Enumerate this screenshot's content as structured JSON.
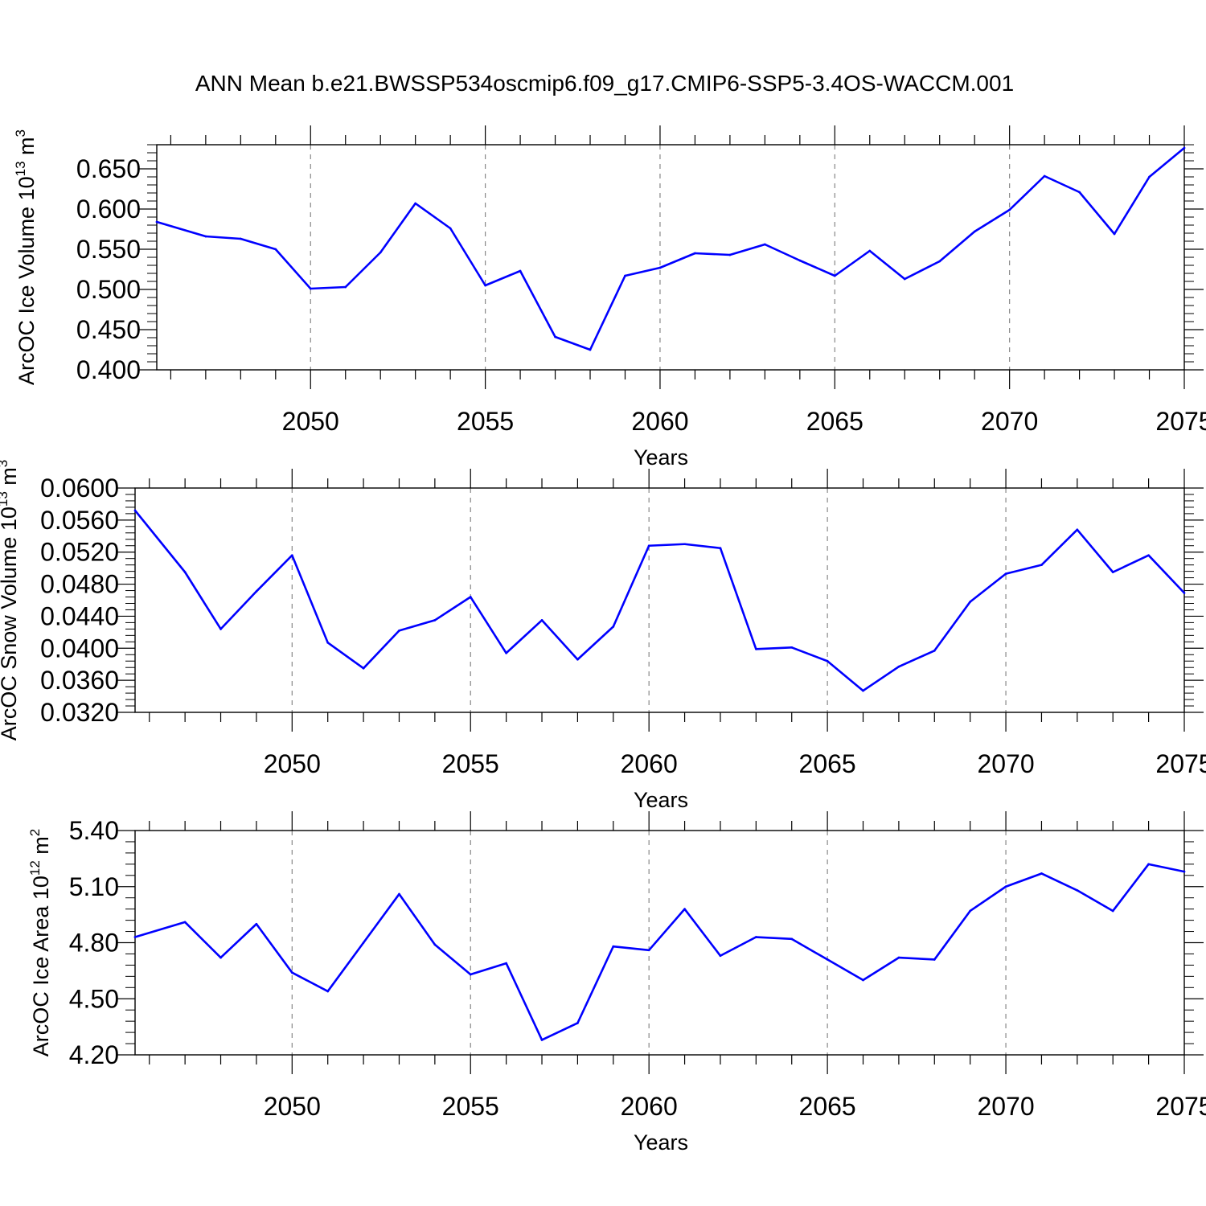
{
  "title": "ANN Mean b.e21.BWSSP534oscmip6.f09_g17.CMIP6-SSP5-3.4OS-WACCM.001",
  "line_color": "#0000ff",
  "grid_color": "#888888",
  "chart_data": [
    {
      "type": "line",
      "ylabel_main": "ArcOC Ice Volume 10",
      "ylabel_exp": "13",
      "ylabel_unit": " m",
      "ylabel_unit_exp": "3",
      "xlabel": "Years",
      "xlim": [
        2045.6,
        2075
      ],
      "ylim": [
        0.4,
        0.68
      ],
      "yticks": [
        "0.400",
        "0.450",
        "0.500",
        "0.550",
        "0.600",
        "0.650"
      ],
      "xticks": [
        "2050",
        "2055",
        "2060",
        "2065",
        "2070",
        "2075"
      ],
      "x": [
        2045.6,
        2047,
        2048,
        2049,
        2050,
        2051,
        2052,
        2053,
        2054,
        2055,
        2056,
        2057,
        2058,
        2059,
        2060,
        2061,
        2062,
        2063,
        2064,
        2065,
        2066,
        2067,
        2068,
        2069,
        2070,
        2071,
        2072,
        2073,
        2074,
        2075
      ],
      "values": [
        0.584,
        0.566,
        0.563,
        0.55,
        0.501,
        0.503,
        0.546,
        0.607,
        0.576,
        0.505,
        0.523,
        0.441,
        0.425,
        0.517,
        0.527,
        0.545,
        0.543,
        0.556,
        0.536,
        0.517,
        0.548,
        0.513,
        0.535,
        0.572,
        0.599,
        0.641,
        0.621,
        0.569,
        0.64,
        0.676
      ]
    },
    {
      "type": "line",
      "ylabel_main": "ArcOC Snow Volume 10",
      "ylabel_exp": "13",
      "ylabel_unit": " m",
      "ylabel_unit_exp": "3",
      "xlabel": "Years",
      "xlim": [
        2045.6,
        2075
      ],
      "ylim": [
        0.032,
        0.06
      ],
      "yticks": [
        "0.0320",
        "0.0360",
        "0.0400",
        "0.0440",
        "0.0480",
        "0.0520",
        "0.0560",
        "0.0600"
      ],
      "xticks": [
        "2050",
        "2055",
        "2060",
        "2065",
        "2070",
        "2075"
      ],
      "x": [
        2045.6,
        2047,
        2048,
        2049,
        2050,
        2051,
        2052,
        2053,
        2054,
        2055,
        2056,
        2057,
        2058,
        2059,
        2060,
        2061,
        2062,
        2063,
        2064,
        2065,
        2066,
        2067,
        2068,
        2069,
        2070,
        2071,
        2072,
        2073,
        2074,
        2075
      ],
      "values": [
        0.0572,
        0.0495,
        0.0424,
        0.0471,
        0.0516,
        0.0407,
        0.0375,
        0.0422,
        0.0435,
        0.0464,
        0.0394,
        0.0435,
        0.0386,
        0.0427,
        0.0528,
        0.053,
        0.0525,
        0.0399,
        0.0401,
        0.0384,
        0.0347,
        0.0377,
        0.0397,
        0.0458,
        0.0493,
        0.0504,
        0.0548,
        0.0495,
        0.0516,
        0.0469
      ]
    },
    {
      "type": "line",
      "ylabel_main": "ArcOC Ice Area 10",
      "ylabel_exp": "12",
      "ylabel_unit": " m",
      "ylabel_unit_exp": "2",
      "xlabel": "Years",
      "xlim": [
        2045.6,
        2075
      ],
      "ylim": [
        4.2,
        5.4
      ],
      "yticks": [
        "4.20",
        "4.50",
        "4.80",
        "5.10",
        "5.40"
      ],
      "xticks": [
        "2050",
        "2055",
        "2060",
        "2065",
        "2070",
        "2075"
      ],
      "x": [
        2045.6,
        2047,
        2048,
        2049,
        2050,
        2051,
        2052,
        2053,
        2054,
        2055,
        2056,
        2057,
        2058,
        2059,
        2060,
        2061,
        2062,
        2063,
        2064,
        2065,
        2066,
        2067,
        2068,
        2069,
        2070,
        2071,
        2072,
        2073,
        2074,
        2075
      ],
      "values": [
        4.83,
        4.91,
        4.72,
        4.9,
        4.64,
        4.54,
        4.8,
        5.06,
        4.79,
        4.63,
        4.69,
        4.28,
        4.37,
        4.78,
        4.76,
        4.98,
        4.73,
        4.83,
        4.82,
        4.71,
        4.6,
        4.72,
        4.71,
        4.97,
        5.1,
        5.17,
        5.08,
        4.97,
        5.22,
        5.18
      ]
    }
  ]
}
